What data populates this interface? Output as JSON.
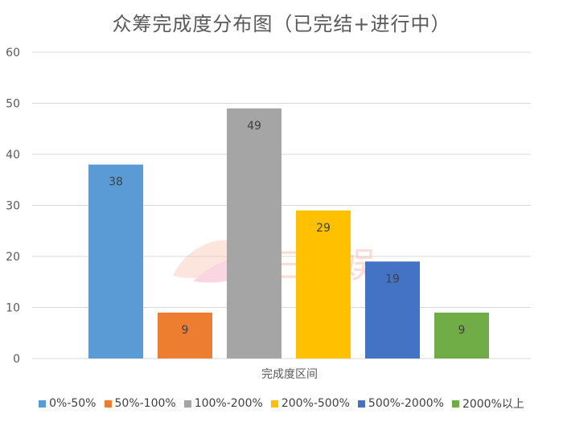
{
  "chart_data": {
    "type": "bar",
    "title": "众筹完成度分布图（已完结+进行中）",
    "xlabel": "完成度区间",
    "ylabel": "",
    "ylim": [
      0,
      60
    ],
    "yticks": [
      0,
      10,
      20,
      30,
      40,
      50,
      60
    ],
    "categories": [
      "0%-50%",
      "50%-100%",
      "100%-200%",
      "200%-500%",
      "500%-2000%",
      "2000%以上"
    ],
    "values": [
      38,
      9,
      49,
      29,
      19,
      9
    ],
    "colors": [
      "#5B9BD5",
      "#ED7D31",
      "#A5A5A5",
      "#FFC000",
      "#4472C4",
      "#70AD47"
    ],
    "data_labels": [
      "38",
      "9",
      "49",
      "29",
      "19",
      "9"
    ],
    "grid": true,
    "legend": "bottom"
  },
  "watermark": {
    "text": "三文娱"
  }
}
